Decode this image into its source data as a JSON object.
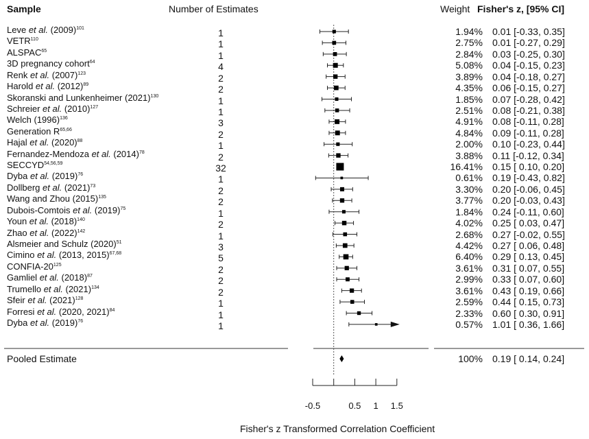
{
  "headers": {
    "sample": "Sample",
    "count": "Number of Estimates",
    "weight": "Weight",
    "effect": "Fisher's z, [95% CI]"
  },
  "chart_data": {
    "type": "forest",
    "xlabel": "Fisher's z Transformed Correlation Coefficient",
    "xticks": [
      -0.5,
      0,
      0.5,
      1,
      1.5
    ],
    "xtick_labels": [
      "-0.5",
      "",
      "0.5",
      "1",
      "1.5"
    ],
    "xlim": [
      -0.5,
      1.5
    ],
    "reference_line": 0,
    "studies": [
      {
        "author": "Leve ",
        "etal": "et al.",
        "tail": " (2009)",
        "sup": "101",
        "k": "1",
        "weight": "1.94%",
        "est": 0.01,
        "lo": -0.33,
        "hi": 0.35,
        "ci_text": "0.01 [-0.33, 0.35]"
      },
      {
        "author": "VETR",
        "etal": "",
        "tail": "",
        "sup": "110",
        "k": "1",
        "weight": "2.75%",
        "est": 0.01,
        "lo": -0.27,
        "hi": 0.29,
        "ci_text": "0.01 [-0.27, 0.29]"
      },
      {
        "author": "ALSPAC",
        "etal": "",
        "tail": "",
        "sup": "65",
        "k": "1",
        "weight": "2.84%",
        "est": 0.03,
        "lo": -0.25,
        "hi": 0.3,
        "ci_text": "0.03 [-0.25, 0.30]"
      },
      {
        "author": "3D pregnancy cohort",
        "etal": "",
        "tail": "",
        "sup": "64",
        "k": "4",
        "weight": "5.08%",
        "est": 0.04,
        "lo": -0.15,
        "hi": 0.23,
        "ci_text": "0.04 [-0.15, 0.23]"
      },
      {
        "author": "Renk ",
        "etal": "et al.",
        "tail": " (2007)",
        "sup": "123",
        "k": "2",
        "weight": "3.89%",
        "est": 0.04,
        "lo": -0.18,
        "hi": 0.27,
        "ci_text": "0.04 [-0.18, 0.27]"
      },
      {
        "author": "Harold ",
        "etal": "et al.",
        "tail": " (2012)",
        "sup": "89",
        "k": "2",
        "weight": "4.35%",
        "est": 0.06,
        "lo": -0.15,
        "hi": 0.27,
        "ci_text": "0.06 [-0.15, 0.27]"
      },
      {
        "author": "Skoranski and Lunkenheimer (2021)",
        "etal": "",
        "tail": "",
        "sup": "130",
        "k": "1",
        "weight": "1.85%",
        "est": 0.07,
        "lo": -0.28,
        "hi": 0.42,
        "ci_text": "0.07 [-0.28, 0.42]"
      },
      {
        "author": "Schreier ",
        "etal": "et al.",
        "tail": " (2010)",
        "sup": "127",
        "k": "1",
        "weight": "2.51%",
        "est": 0.08,
        "lo": -0.21,
        "hi": 0.38,
        "ci_text": "0.08 [-0.21, 0.38]"
      },
      {
        "author": "Welch (1996)",
        "etal": "",
        "tail": "",
        "sup": "136",
        "k": "3",
        "weight": "4.91%",
        "est": 0.08,
        "lo": -0.11,
        "hi": 0.28,
        "ci_text": "0.08 [-0.11, 0.28]"
      },
      {
        "author": "Generation R",
        "etal": "",
        "tail": "",
        "sup": "65,66",
        "k": "2",
        "weight": "4.84%",
        "est": 0.09,
        "lo": -0.11,
        "hi": 0.28,
        "ci_text": "0.09 [-0.11, 0.28]"
      },
      {
        "author": "Hajal ",
        "etal": "et al.",
        "tail": " (2020)",
        "sup": "88",
        "k": "1",
        "weight": "2.00%",
        "est": 0.1,
        "lo": -0.23,
        "hi": 0.44,
        "ci_text": "0.10 [-0.23, 0.44]"
      },
      {
        "author": "Fernandez-Mendoza ",
        "etal": "et al.",
        "tail": " (2014)",
        "sup": "78",
        "k": "2",
        "weight": "3.88%",
        "est": 0.11,
        "lo": -0.12,
        "hi": 0.34,
        "ci_text": "0.11 [-0.12, 0.34]"
      },
      {
        "author": "SECCYD",
        "etal": "",
        "tail": "",
        "sup": "54,56,59",
        "k": "32",
        "weight": "16.41%",
        "est": 0.15,
        "lo": 0.1,
        "hi": 0.2,
        "ci_text": "0.15 [ 0.10, 0.20]"
      },
      {
        "author": "Dyba ",
        "etal": "et al.",
        "tail": " (2019)",
        "sup": "76",
        "k": "1",
        "weight": "0.61%",
        "est": 0.19,
        "lo": -0.43,
        "hi": 0.82,
        "ci_text": "0.19 [-0.43, 0.82]"
      },
      {
        "author": "Dollberg ",
        "etal": "et al.",
        "tail": " (2021)",
        "sup": "73",
        "k": "2",
        "weight": "3.30%",
        "est": 0.2,
        "lo": -0.06,
        "hi": 0.45,
        "ci_text": "0.20 [-0.06, 0.45]"
      },
      {
        "author": "Wang and Zhou (2015)",
        "etal": "",
        "tail": "",
        "sup": "135",
        "k": "2",
        "weight": "3.77%",
        "est": 0.2,
        "lo": -0.03,
        "hi": 0.43,
        "ci_text": "0.20 [-0.03, 0.43]"
      },
      {
        "author": "Dubois-Comtois ",
        "etal": "et al.",
        "tail": " (2019)",
        "sup": "75",
        "k": "1",
        "weight": "1.84%",
        "est": 0.24,
        "lo": -0.11,
        "hi": 0.6,
        "ci_text": "0.24 [-0.11, 0.60]"
      },
      {
        "author": "Youn ",
        "etal": "et al.",
        "tail": " (2018)",
        "sup": "140",
        "k": "2",
        "weight": "4.02%",
        "est": 0.25,
        "lo": 0.03,
        "hi": 0.47,
        "ci_text": "0.25 [ 0.03, 0.47]"
      },
      {
        "author": "Zhao ",
        "etal": "et al.",
        "tail": " (2022)",
        "sup": "142",
        "k": "1",
        "weight": "2.68%",
        "est": 0.27,
        "lo": -0.02,
        "hi": 0.55,
        "ci_text": "0.27 [-0.02, 0.55]"
      },
      {
        "author": "Alsmeier and Schulz (2020)",
        "etal": "",
        "tail": "",
        "sup": "51",
        "k": "3",
        "weight": "4.42%",
        "est": 0.27,
        "lo": 0.06,
        "hi": 0.48,
        "ci_text": "0.27 [ 0.06, 0.48]"
      },
      {
        "author": "Cimino ",
        "etal": "et al.",
        "tail": " (2013, 2015)",
        "sup": "67,68",
        "k": "5",
        "weight": "6.40%",
        "est": 0.29,
        "lo": 0.13,
        "hi": 0.45,
        "ci_text": "0.29 [ 0.13, 0.45]"
      },
      {
        "author": "CONFIA-20",
        "etal": "",
        "tail": "",
        "sup": "125",
        "k": "2",
        "weight": "3.61%",
        "est": 0.31,
        "lo": 0.07,
        "hi": 0.55,
        "ci_text": "0.31 [ 0.07, 0.55]"
      },
      {
        "author": "Gamliel ",
        "etal": "et al.",
        "tail": " (2018)",
        "sup": "87",
        "k": "2",
        "weight": "2.99%",
        "est": 0.33,
        "lo": 0.07,
        "hi": 0.6,
        "ci_text": "0.33 [ 0.07, 0.60]"
      },
      {
        "author": "Trumello ",
        "etal": "et al.",
        "tail": " (2021)",
        "sup": "134",
        "k": "2",
        "weight": "3.61%",
        "est": 0.43,
        "lo": 0.19,
        "hi": 0.66,
        "ci_text": "0.43 [ 0.19, 0.66]"
      },
      {
        "author": "Sfeir ",
        "etal": "et al.",
        "tail": " (2021)",
        "sup": "128",
        "k": "1",
        "weight": "2.59%",
        "est": 0.44,
        "lo": 0.15,
        "hi": 0.73,
        "ci_text": "0.44 [ 0.15, 0.73]"
      },
      {
        "author": "Forresi ",
        "etal": "et al.",
        "tail": " (2020, 2021)",
        "sup": "84",
        "k": "1",
        "weight": "2.33%",
        "est": 0.6,
        "lo": 0.3,
        "hi": 0.91,
        "ci_text": "0.60 [ 0.30, 0.91]"
      },
      {
        "author": "Dyba ",
        "etal": "et al.",
        "tail": " (2019)",
        "sup": "76",
        "k": "1",
        "weight": "0.57%",
        "est": 1.01,
        "lo": 0.36,
        "hi": 1.66,
        "ci_text": "1.01 [ 0.36, 1.66]",
        "arrow": true
      }
    ],
    "pooled": {
      "label": "Pooled Estimate",
      "weight": "100%",
      "est": 0.19,
      "lo": 0.14,
      "hi": 0.24,
      "ci_text": "0.19 [ 0.14, 0.24]"
    }
  }
}
